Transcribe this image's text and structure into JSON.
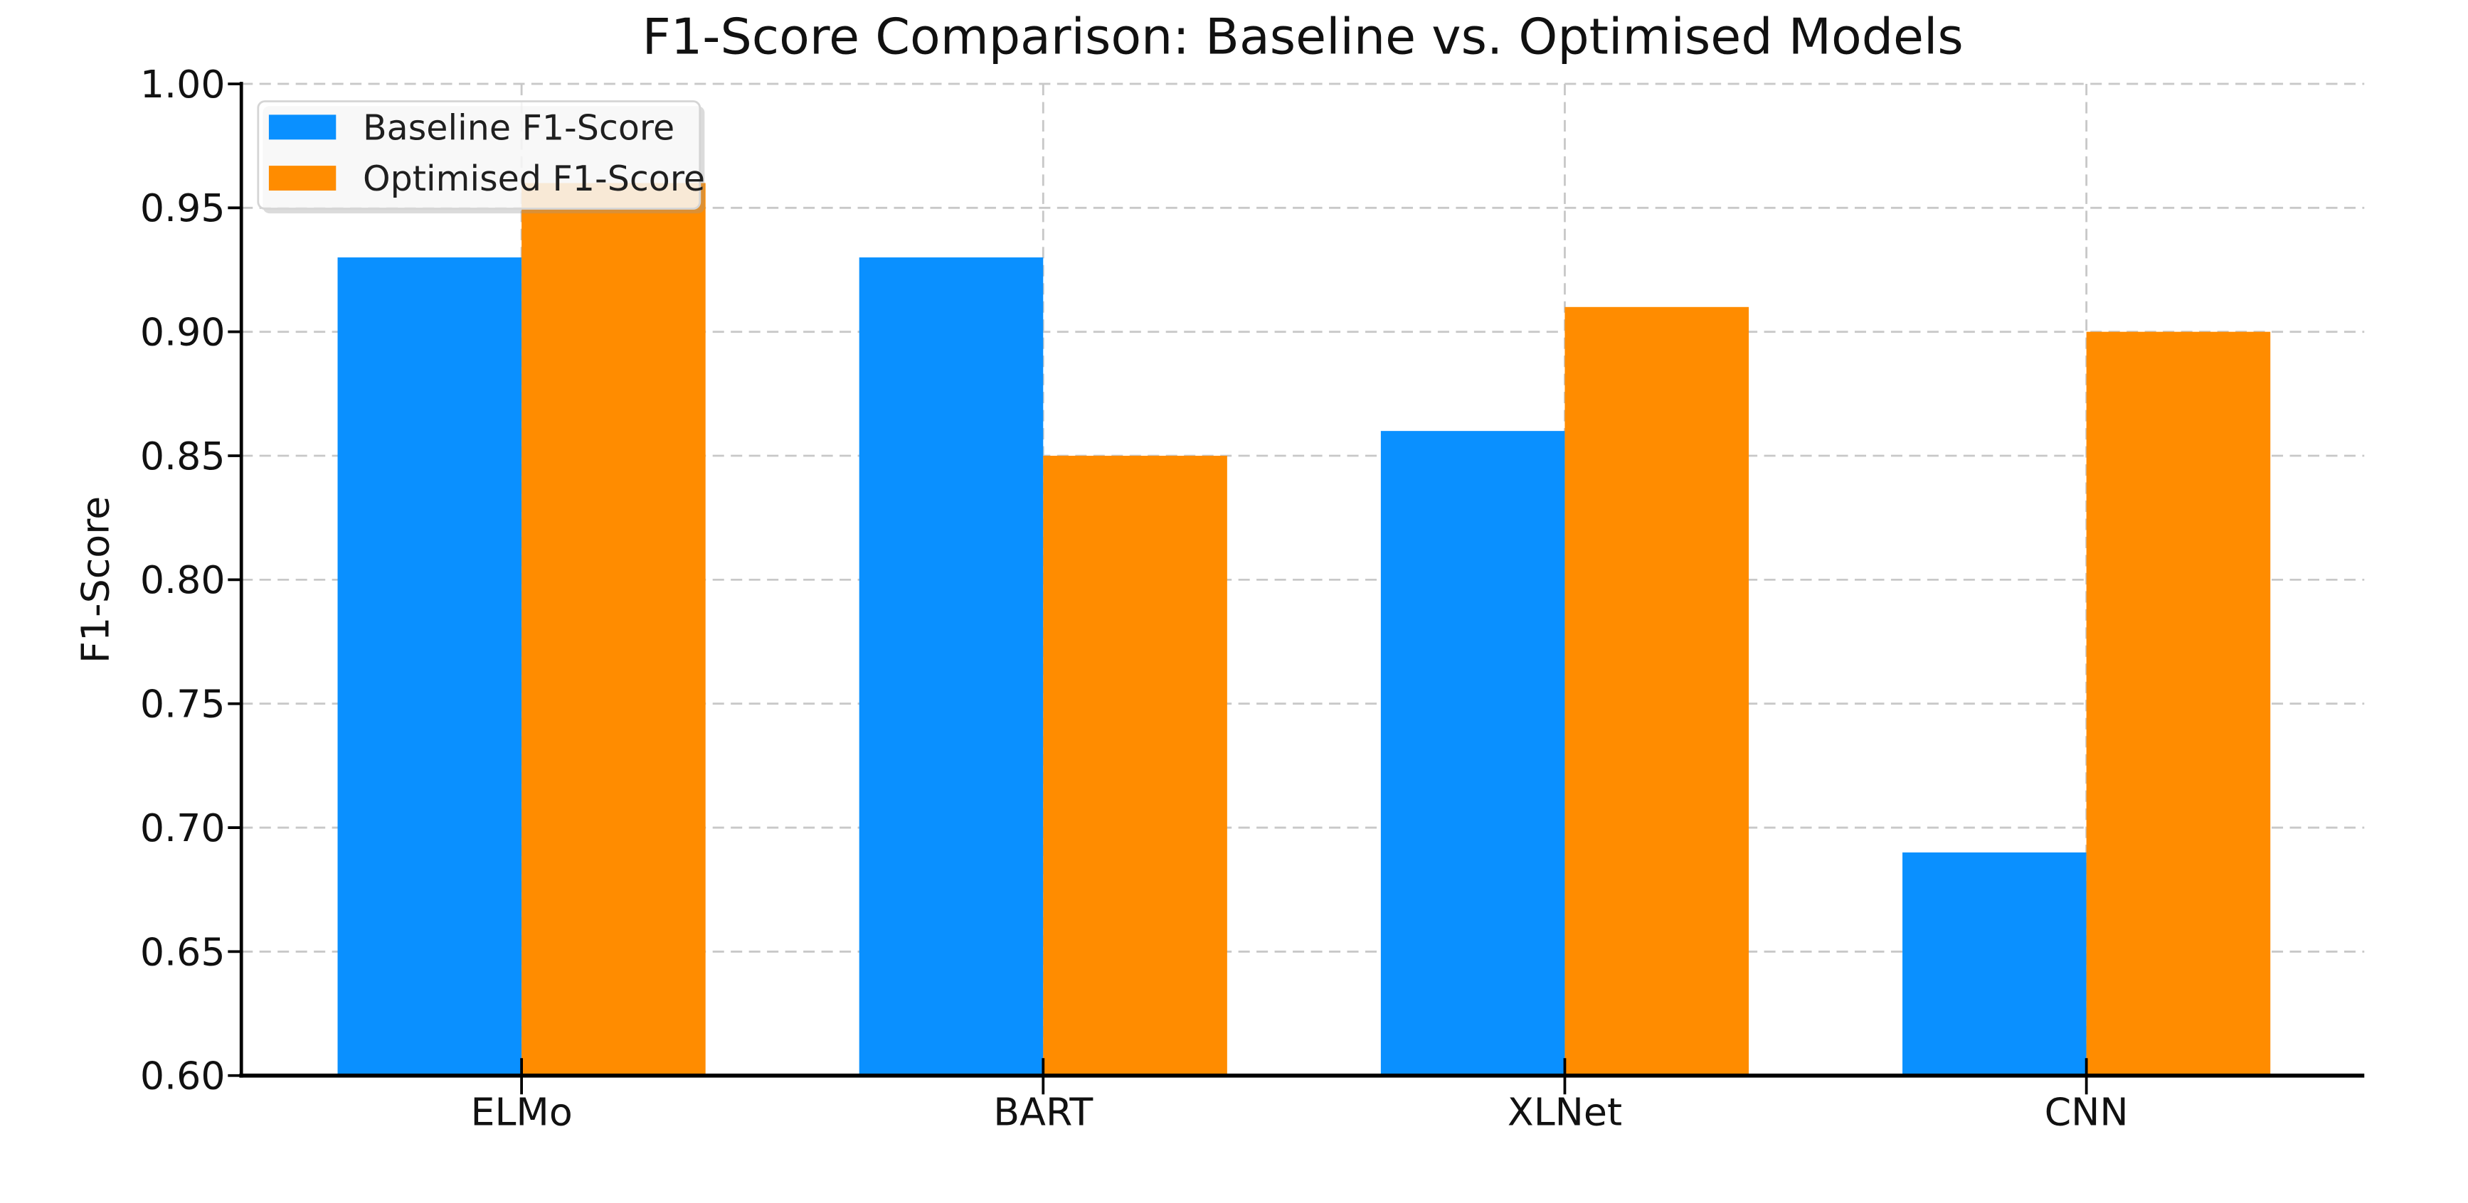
{
  "chart_data": {
    "type": "bar",
    "title": "F1-Score Comparison: Baseline vs. Optimised Models",
    "xlabel": "",
    "ylabel": "F1-Score",
    "categories": [
      "ELMo",
      "BART",
      "XLNet",
      "CNN"
    ],
    "series": [
      {
        "name": "Baseline F1-Score",
        "color": "#0A90FF",
        "values": [
          0.93,
          0.93,
          0.86,
          0.69
        ]
      },
      {
        "name": "Optimised F1-Score",
        "color": "#FF8C00",
        "values": [
          0.96,
          0.85,
          0.91,
          0.9
        ]
      }
    ],
    "ylim": [
      0.6,
      1.0
    ],
    "ytick_labels": [
      "0.60",
      "0.65",
      "0.70",
      "0.75",
      "0.80",
      "0.85",
      "0.90",
      "0.95",
      "1.00"
    ],
    "grid": {
      "visible": true,
      "style": "dashed",
      "color": "#C8C8C8",
      "axes": "both"
    },
    "legend": {
      "position": "upper-left",
      "entries": [
        "Baseline F1-Score",
        "Optimised F1-Score"
      ]
    },
    "colors": {
      "background": "#FFFFFF",
      "spine": "#000000",
      "text": "#111111"
    }
  }
}
